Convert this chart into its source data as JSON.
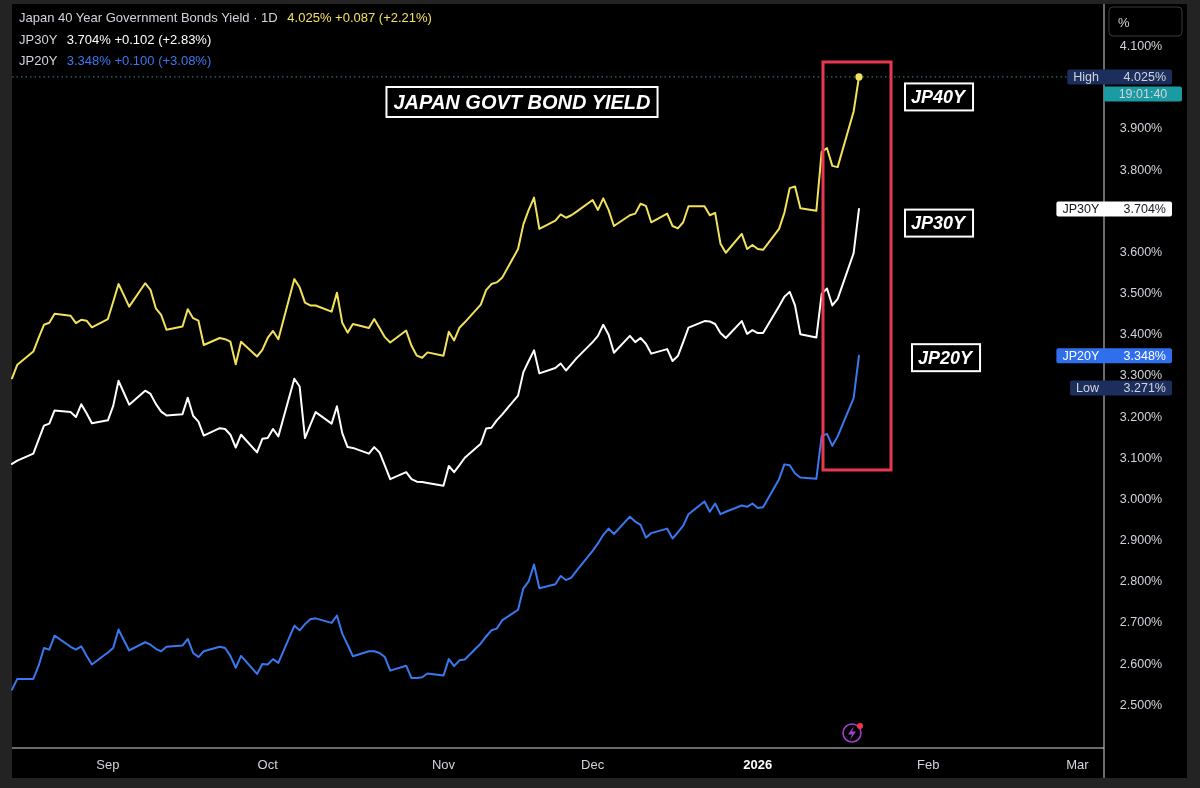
{
  "chart_data": {
    "type": "line",
    "title": "JAPAN GOVT BOND YIELD",
    "subtitle": "Japan 40 Year Government Bonds Yield · 1D",
    "ylabel": "%",
    "legend": "top right",
    "line_style": "solid",
    "x": [
      "2025-08-14",
      "2025-08-15",
      "2025-08-18",
      "2025-08-19",
      "2025-08-20",
      "2025-08-21",
      "2025-08-22",
      "2025-08-25",
      "2025-08-26",
      "2025-08-27",
      "2025-08-28",
      "2025-08-29",
      "2025-09-01",
      "2025-09-02",
      "2025-09-03",
      "2025-09-04",
      "2025-09-05",
      "2025-09-08",
      "2025-09-09",
      "2025-09-10",
      "2025-09-11",
      "2025-09-12",
      "2025-09-15",
      "2025-09-16",
      "2025-09-17",
      "2025-09-18",
      "2025-09-19",
      "2025-09-22",
      "2025-09-23",
      "2025-09-24",
      "2025-09-25",
      "2025-09-26",
      "2025-09-29",
      "2025-09-30",
      "2025-10-01",
      "2025-10-02",
      "2025-10-03",
      "2025-10-06",
      "2025-10-07",
      "2025-10-08",
      "2025-10-09",
      "2025-10-10",
      "2025-10-13",
      "2025-10-14",
      "2025-10-15",
      "2025-10-16",
      "2025-10-17",
      "2025-10-20",
      "2025-10-21",
      "2025-10-22",
      "2025-10-23",
      "2025-10-24",
      "2025-10-27",
      "2025-10-28",
      "2025-10-29",
      "2025-10-30",
      "2025-10-31",
      "2025-11-03",
      "2025-11-04",
      "2025-11-05",
      "2025-11-06",
      "2025-11-07",
      "2025-11-10",
      "2025-11-11",
      "2025-11-12",
      "2025-11-13",
      "2025-11-14",
      "2025-11-17",
      "2025-11-18",
      "2025-11-19",
      "2025-11-20",
      "2025-11-21",
      "2025-11-24",
      "2025-11-25",
      "2025-11-26",
      "2025-11-27",
      "2025-11-28",
      "2025-12-01",
      "2025-12-02",
      "2025-12-03",
      "2025-12-04",
      "2025-12-05",
      "2025-12-08",
      "2025-12-09",
      "2025-12-10",
      "2025-12-11",
      "2025-12-12",
      "2025-12-15",
      "2025-12-16",
      "2025-12-17",
      "2025-12-18",
      "2025-12-19",
      "2025-12-22",
      "2025-12-23",
      "2025-12-24",
      "2025-12-25",
      "2025-12-26",
      "2025-12-29",
      "2025-12-30",
      "2025-12-31",
      "2026-01-01",
      "2026-01-02",
      "2026-01-05",
      "2026-01-06",
      "2026-01-07",
      "2026-01-08",
      "2026-01-09",
      "2026-01-12",
      "2026-01-13",
      "2026-01-14",
      "2026-01-15",
      "2026-01-16",
      "2026-01-19",
      "2026-01-20"
    ],
    "series": [
      {
        "name": "JP40Y",
        "color": "#f2e15b",
        "values": [
          3.293,
          3.326,
          3.358,
          3.391,
          3.423,
          3.428,
          3.45,
          3.445,
          3.427,
          3.435,
          3.433,
          3.417,
          3.437,
          3.479,
          3.522,
          3.495,
          3.467,
          3.524,
          3.508,
          3.463,
          3.447,
          3.411,
          3.419,
          3.461,
          3.439,
          3.433,
          3.374,
          3.391,
          3.388,
          3.382,
          3.327,
          3.382,
          3.346,
          3.362,
          3.391,
          3.408,
          3.388,
          3.534,
          3.514,
          3.477,
          3.47,
          3.47,
          3.455,
          3.501,
          3.428,
          3.404,
          3.425,
          3.415,
          3.437,
          3.415,
          3.393,
          3.38,
          3.409,
          3.372,
          3.348,
          3.343,
          3.356,
          3.348,
          3.406,
          3.385,
          3.416,
          3.429,
          3.472,
          3.507,
          3.522,
          3.526,
          3.537,
          3.607,
          3.667,
          3.702,
          3.732,
          3.656,
          3.676,
          3.691,
          3.683,
          3.689,
          3.698,
          3.726,
          3.702,
          3.73,
          3.702,
          3.663,
          3.689,
          3.693,
          3.717,
          3.712,
          3.672,
          3.693,
          3.663,
          3.657,
          3.672,
          3.711,
          3.711,
          3.689,
          3.695,
          3.62,
          3.598,
          3.644,
          3.607,
          3.617,
          3.607,
          3.605,
          3.656,
          3.695,
          3.755,
          3.759,
          3.706,
          3.7,
          3.843,
          3.852,
          3.809,
          3.806,
          3.941,
          4.025
        ]
      },
      {
        "name": "JP30Y",
        "color": "#ffffff",
        "values": [
          3.085,
          3.093,
          3.11,
          3.144,
          3.178,
          3.183,
          3.215,
          3.211,
          3.199,
          3.23,
          3.208,
          3.184,
          3.191,
          3.226,
          3.287,
          3.258,
          3.229,
          3.263,
          3.255,
          3.231,
          3.212,
          3.203,
          3.206,
          3.246,
          3.202,
          3.188,
          3.154,
          3.172,
          3.17,
          3.156,
          3.125,
          3.156,
          3.113,
          3.146,
          3.148,
          3.17,
          3.152,
          3.292,
          3.273,
          3.148,
          3.18,
          3.211,
          3.183,
          3.225,
          3.16,
          3.126,
          3.124,
          3.11,
          3.126,
          3.113,
          3.081,
          3.048,
          3.065,
          3.048,
          3.042,
          3.041,
          3.039,
          3.032,
          3.08,
          3.065,
          3.082,
          3.1,
          3.134,
          3.171,
          3.173,
          3.191,
          3.205,
          3.251,
          3.308,
          3.335,
          3.361,
          3.305,
          3.318,
          3.329,
          3.312,
          3.327,
          3.342,
          3.381,
          3.396,
          3.423,
          3.399,
          3.355,
          3.396,
          3.381,
          3.391,
          3.377,
          3.353,
          3.364,
          3.335,
          3.347,
          3.381,
          3.416,
          3.432,
          3.431,
          3.425,
          3.403,
          3.391,
          3.432,
          3.401,
          3.41,
          3.403,
          3.403,
          3.468,
          3.491,
          3.503,
          3.47,
          3.4,
          3.392,
          3.498,
          3.511,
          3.47,
          3.486,
          3.597,
          3.704
        ]
      },
      {
        "name": "JP20Y",
        "color": "#3a78ef",
        "values": [
          2.537,
          2.563,
          2.563,
          2.595,
          2.638,
          2.634,
          2.668,
          2.641,
          2.634,
          2.642,
          2.619,
          2.598,
          2.627,
          2.638,
          2.683,
          2.657,
          2.632,
          2.652,
          2.646,
          2.636,
          2.63,
          2.641,
          2.644,
          2.66,
          2.626,
          2.616,
          2.63,
          2.641,
          2.638,
          2.619,
          2.59,
          2.619,
          2.575,
          2.599,
          2.598,
          2.611,
          2.602,
          2.692,
          2.681,
          2.696,
          2.708,
          2.71,
          2.699,
          2.717,
          2.673,
          2.646,
          2.618,
          2.63,
          2.63,
          2.626,
          2.616,
          2.583,
          2.595,
          2.565,
          2.565,
          2.567,
          2.576,
          2.571,
          2.611,
          2.594,
          2.608,
          2.61,
          2.649,
          2.666,
          2.681,
          2.685,
          2.705,
          2.731,
          2.783,
          2.8,
          2.841,
          2.783,
          2.793,
          2.813,
          2.803,
          2.809,
          2.826,
          2.874,
          2.892,
          2.913,
          2.928,
          2.915,
          2.957,
          2.945,
          2.937,
          2.906,
          2.917,
          2.928,
          2.904,
          2.919,
          2.935,
          2.963,
          2.994,
          2.969,
          2.989,
          2.963,
          2.969,
          2.984,
          2.981,
          2.989,
          2.978,
          2.98,
          3.048,
          3.084,
          3.082,
          3.062,
          3.052,
          3.049,
          3.153,
          3.158,
          3.129,
          3.152,
          3.245,
          3.348
        ]
      },
      {
        "type": "scatter",
        "x": [
          "2026-01-20"
        ],
        "values": [
          4.025
        ],
        "color": "#f2e15b",
        "marker": "circle"
      }
    ],
    "xlim": [
      "2025-08-14",
      "2026-03-07"
    ],
    "xticks": [
      {
        "value": "2025-09-01",
        "label": "Sep"
      },
      {
        "value": "2025-10-01",
        "label": "Oct"
      },
      {
        "value": "2025-11-03",
        "label": "Nov"
      },
      {
        "value": "2025-12-01",
        "label": "Dec"
      },
      {
        "value": "2026-01-01",
        "label": "2026"
      },
      {
        "value": "2026-02-02",
        "label": "Feb"
      },
      {
        "value": "2026-03-02",
        "label": "Mar"
      }
    ],
    "ylim": [
      2.4,
      4.19
    ],
    "yticks": [
      {
        "value": 2.5,
        "label": "2.500%"
      },
      {
        "value": 2.6,
        "label": "2.600%"
      },
      {
        "value": 2.7,
        "label": "2.700%"
      },
      {
        "value": 2.8,
        "label": "2.800%"
      },
      {
        "value": 2.9,
        "label": "2.900%"
      },
      {
        "value": 3.0,
        "label": "3.000%"
      },
      {
        "value": 3.1,
        "label": "3.100%"
      },
      {
        "value": 3.2,
        "label": "3.200%"
      },
      {
        "value": 3.3,
        "label": "3.300%"
      },
      {
        "value": 3.4,
        "label": "3.400%"
      },
      {
        "value": 3.5,
        "label": "3.500%"
      },
      {
        "value": 3.6,
        "label": "3.600%"
      },
      {
        "value": 3.8,
        "label": "3.800%"
      },
      {
        "value": 3.9,
        "label": "3.900%"
      },
      {
        "value": 4.1,
        "label": "4.100%"
      }
    ],
    "ref_lines": [
      {
        "axis": "y",
        "value": 4.025,
        "color": "#2b8f95",
        "line_style": "dotted"
      }
    ],
    "annotations": [
      "4.025%  +0.087 (+2.21%)",
      "3.704%  +0.102 (+2.83%)",
      "3.348%  +0.100 (+3.08%)",
      "19:01:40",
      "High 4.025%",
      "JP30Y 3.704%",
      "JP20Y 3.348%",
      "Low 3.271%"
    ]
  }
}
